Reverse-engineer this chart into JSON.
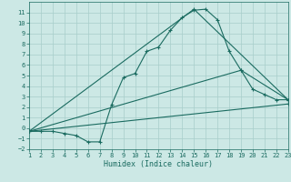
{
  "title": "",
  "xlabel": "Humidex (Indice chaleur)",
  "background_color": "#cce8e5",
  "grid_color": "#a8ceca",
  "line_color": "#1a6b60",
  "xlim": [
    1,
    23
  ],
  "ylim": [
    -2,
    12
  ],
  "xticks": [
    1,
    2,
    3,
    4,
    5,
    6,
    7,
    8,
    9,
    10,
    11,
    12,
    13,
    14,
    15,
    16,
    17,
    18,
    19,
    20,
    21,
    22,
    23
  ],
  "yticks": [
    -2,
    -1,
    0,
    1,
    2,
    3,
    4,
    5,
    6,
    7,
    8,
    9,
    10,
    11
  ],
  "line1_x": [
    1,
    2,
    3,
    4,
    5,
    6,
    7,
    8,
    9,
    10,
    11,
    12,
    13,
    14,
    15,
    16,
    17,
    18,
    19,
    20,
    21,
    22,
    23
  ],
  "line1_y": [
    -0.3,
    -0.3,
    -0.3,
    -0.5,
    -0.7,
    -1.3,
    -1.3,
    2.2,
    4.8,
    5.2,
    7.3,
    7.7,
    9.3,
    10.5,
    11.2,
    11.3,
    10.3,
    7.3,
    5.5,
    3.7,
    3.2,
    2.7,
    2.7
  ],
  "line2_x": [
    1,
    19,
    23
  ],
  "line2_y": [
    -0.3,
    5.5,
    2.7
  ],
  "line3_x": [
    1,
    15,
    23
  ],
  "line3_y": [
    -0.3,
    11.3,
    2.7
  ],
  "line4_x": [
    1,
    23
  ],
  "line4_y": [
    -0.3,
    2.3
  ]
}
